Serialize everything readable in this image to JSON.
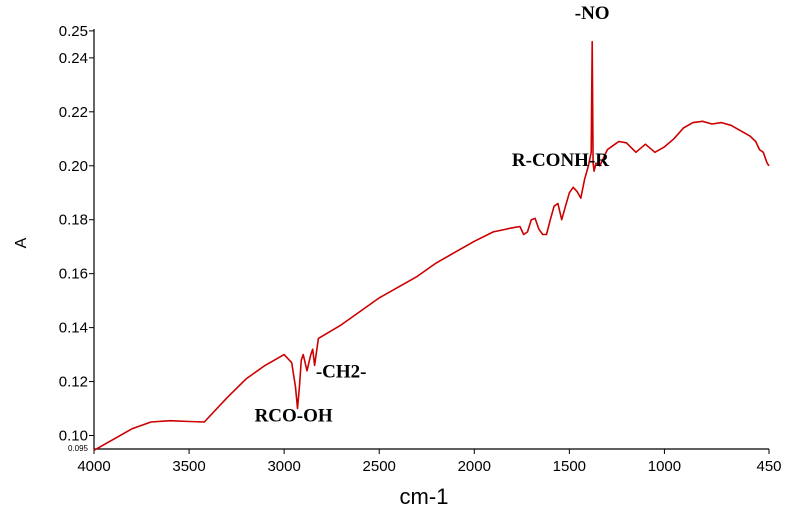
{
  "chart_data": {
    "type": "line",
    "title": "",
    "xlabel": "cm-1",
    "ylabel": "A",
    "xlim": [
      4000,
      450
    ],
    "ylim": [
      0.095,
      0.2507
    ],
    "x_reversed": true,
    "grid": false,
    "x_ticks": [
      "4000",
      "3500",
      "3000",
      "2500",
      "2000",
      "1500",
      "1000",
      "450"
    ],
    "y_ticks": [
      "0.10",
      "0.12",
      "0.14",
      "0.16",
      "0.18",
      "0.20",
      "0.22",
      "0.24",
      "0.25"
    ],
    "y_min_label": "0.095",
    "line_color": "#cc0000",
    "series": [
      {
        "x": [
          4000,
          3900,
          3800,
          3700,
          3600,
          3500,
          3420,
          3300,
          3200,
          3100,
          3000,
          2960,
          2940,
          2930,
          2920,
          2910,
          2900,
          2880,
          2860,
          2850,
          2840,
          2820,
          2700,
          2600,
          2500,
          2400,
          2300,
          2200,
          2100,
          2000,
          1900,
          1800,
          1760,
          1740,
          1720,
          1700,
          1680,
          1660,
          1640,
          1620,
          1600,
          1580,
          1560,
          1540,
          1520,
          1500,
          1480,
          1460,
          1440,
          1420,
          1400,
          1385,
          1380,
          1375,
          1370,
          1360,
          1340,
          1300,
          1260,
          1240,
          1200,
          1150,
          1100,
          1050,
          1000,
          950,
          900,
          850,
          800,
          750,
          700,
          650,
          600,
          550,
          520,
          500,
          480,
          460,
          450
        ],
        "y": [
          0.0945,
          0.0985,
          0.1025,
          0.105,
          0.1055,
          0.1052,
          0.105,
          0.114,
          0.121,
          0.126,
          0.13,
          0.127,
          0.118,
          0.11,
          0.118,
          0.128,
          0.13,
          0.124,
          0.13,
          0.132,
          0.126,
          0.136,
          0.141,
          0.146,
          0.151,
          0.155,
          0.159,
          0.164,
          0.168,
          0.172,
          0.1755,
          0.177,
          0.1775,
          0.1745,
          0.1755,
          0.18,
          0.1805,
          0.1765,
          0.1745,
          0.1745,
          0.18,
          0.185,
          0.186,
          0.18,
          0.185,
          0.19,
          0.192,
          0.1905,
          0.188,
          0.195,
          0.2,
          0.205,
          0.246,
          0.201,
          0.198,
          0.201,
          0.2,
          0.206,
          0.208,
          0.209,
          0.2085,
          0.205,
          0.208,
          0.205,
          0.207,
          0.21,
          0.214,
          0.216,
          0.2165,
          0.2155,
          0.216,
          0.215,
          0.213,
          0.211,
          0.209,
          0.206,
          0.205,
          0.201,
          0.2
        ]
      }
    ],
    "annotations": [
      {
        "text": "-NO",
        "x": 1380,
        "y": 0.2507
      },
      {
        "text": "R-CONH-R",
        "x": 1760,
        "y": 0.2
      },
      {
        "text": "-CH2-",
        "x": 2700,
        "y": 0.1215
      },
      {
        "text": "RCO-OH",
        "x": 2950,
        "y": 0.1052
      }
    ]
  }
}
